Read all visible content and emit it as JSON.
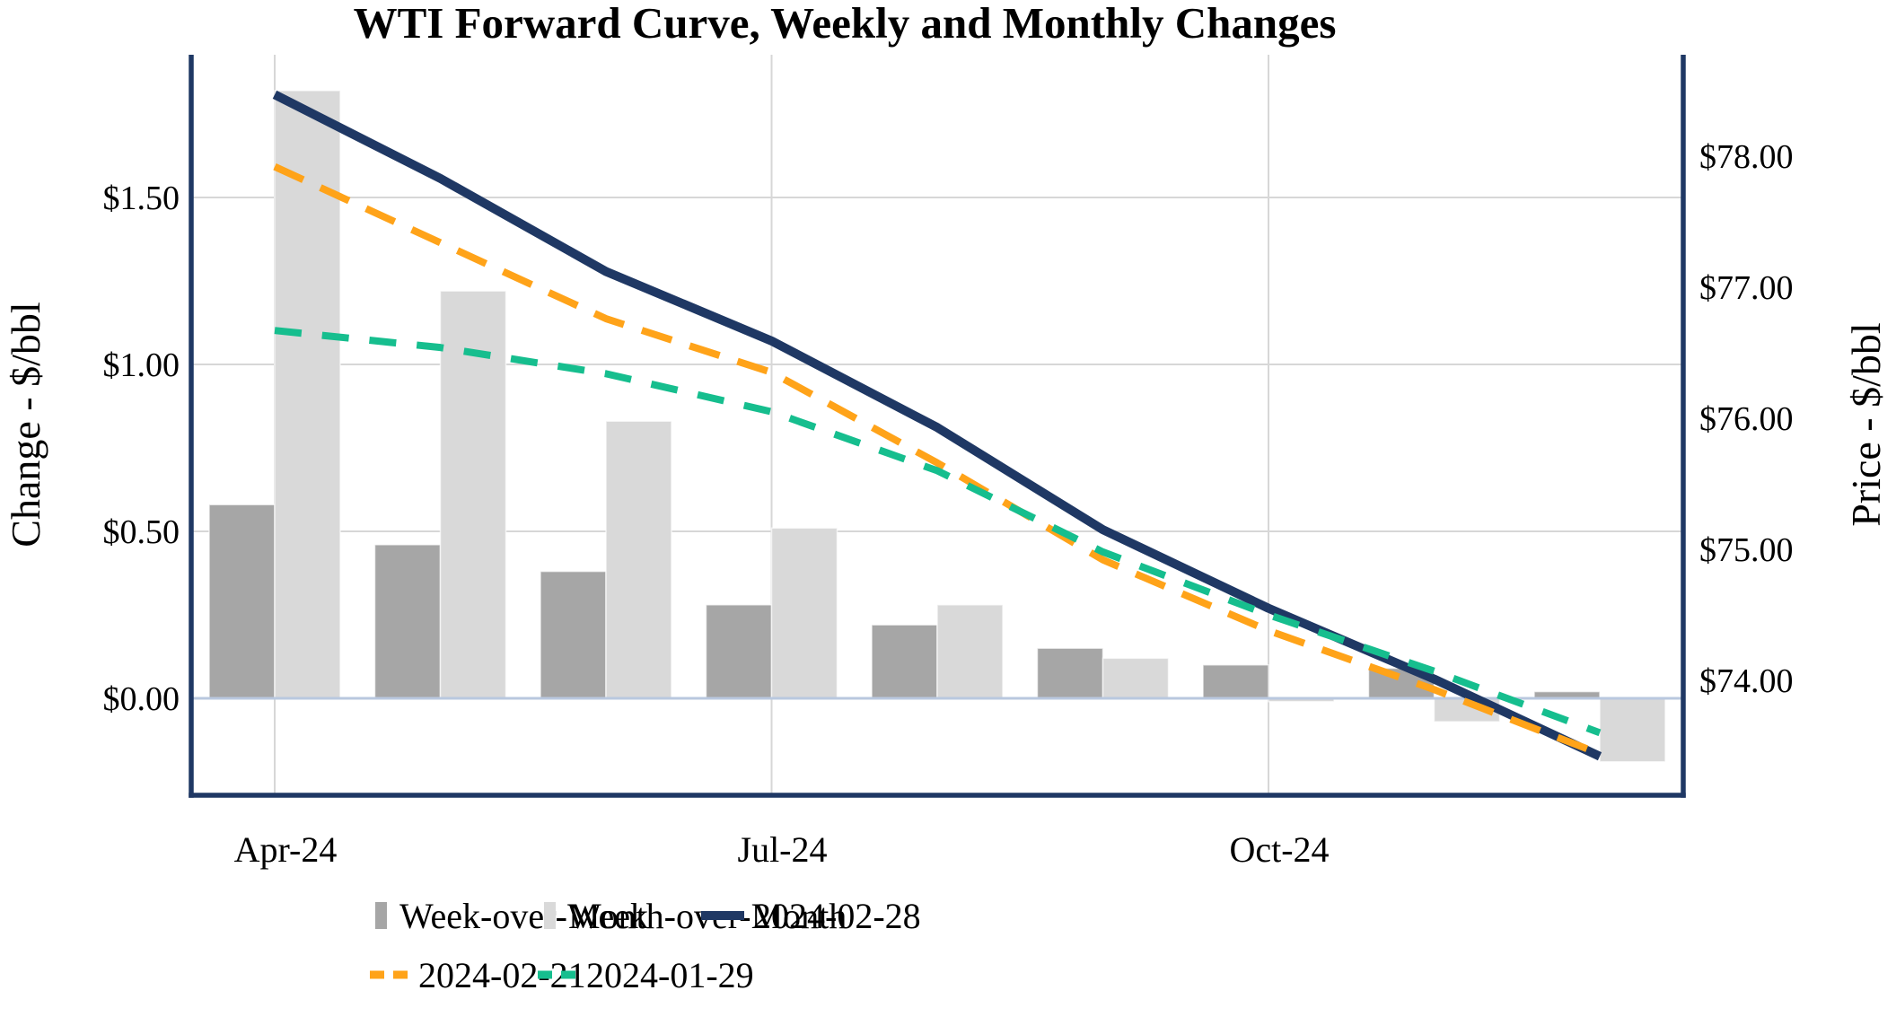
{
  "chart_data": {
    "type": "combo-bar-line",
    "title": "WTI Forward Curve, Weekly and Monthly Changes",
    "num_categories": 9,
    "x_ticks": [
      {
        "position": 1,
        "label": "Apr-24"
      },
      {
        "position": 4,
        "label": "Jul-24"
      },
      {
        "position": 7,
        "label": "Oct-24"
      }
    ],
    "left_axis": {
      "title": "Change - $/bbl",
      "tick_labels": [
        "$0.00",
        "$0.50",
        "$1.00",
        "$1.50"
      ],
      "tick_values": [
        0,
        0.5,
        1.0,
        1.5
      ],
      "range": [
        -0.29,
        1.93
      ],
      "grid": true
    },
    "right_axis": {
      "title": "Price - $/bbl",
      "tick_labels": [
        "$74.00",
        "$75.00",
        "$76.00",
        "$77.00",
        "$78.00"
      ],
      "tick_values": [
        74,
        75,
        76,
        77,
        78
      ],
      "range": [
        73.12,
        78.77
      ]
    },
    "bar_series": [
      {
        "name": "Week-over-Week",
        "color": "#A6A6A6",
        "axis": "left",
        "values": [
          0.58,
          0.46,
          0.38,
          0.28,
          0.22,
          0.15,
          0.1,
          0.09,
          0.02
        ]
      },
      {
        "name": "Month-over-Month",
        "color": "#D9D9D9",
        "axis": "left",
        "values": [
          1.82,
          1.22,
          0.83,
          0.51,
          0.28,
          0.12,
          -0.01,
          -0.07,
          -0.19
        ]
      }
    ],
    "line_series": [
      {
        "name": "2024-02-28",
        "color": "#1F3864",
        "style": "solid",
        "axis": "right",
        "values": [
          78.47,
          77.83,
          77.12,
          76.59,
          75.93,
          75.15,
          74.55,
          74.01,
          73.42
        ]
      },
      {
        "name": "2024-02-21",
        "color": "#FFA319",
        "style": "dashed",
        "axis": "right",
        "values": [
          77.92,
          77.34,
          76.76,
          76.35,
          75.66,
          74.92,
          74.38,
          73.93,
          73.44
        ]
      },
      {
        "name": "2024-01-29",
        "color": "#16BE8E",
        "style": "dashed",
        "axis": "right",
        "values": [
          76.67,
          76.54,
          76.34,
          76.05,
          75.6,
          74.98,
          74.5,
          74.07,
          73.6
        ]
      }
    ],
    "legend": {
      "rows": [
        [
          "Week-over-Week",
          "Month-over-Month",
          "2024-02-28"
        ],
        [
          "2024-02-21",
          "2024-01-29"
        ]
      ]
    },
    "colors": {
      "frame": "#1F3864",
      "gridline": "#D7D7D7",
      "zero_line": "#B9C8DF",
      "text": "#000000",
      "background": "#FFFFFF"
    }
  }
}
